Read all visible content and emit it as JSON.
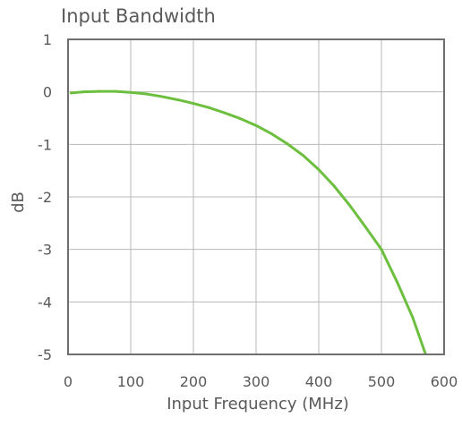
{
  "chart_data": {
    "type": "line",
    "title": "Input Bandwidth",
    "xlabel": "Input Frequency (MHz)",
    "ylabel": "dB",
    "xlim": [
      0,
      600
    ],
    "ylim": [
      -5,
      1
    ],
    "x_ticks": [
      "0",
      "100",
      "200",
      "300",
      "400",
      "500",
      "600"
    ],
    "y_ticks": [
      "1",
      "0",
      "-1",
      "-2",
      "-3",
      "-4",
      "-5"
    ],
    "grid": true,
    "series": [
      {
        "color": "#6dbf3f",
        "x": [
          5,
          25,
          50,
          75,
          100,
          125,
          150,
          175,
          200,
          225,
          250,
          275,
          300,
          325,
          350,
          375,
          400,
          425,
          450,
          475,
          500,
          525,
          550,
          570
        ],
        "y": [
          -0.02,
          0.0,
          0.01,
          0.01,
          -0.01,
          -0.04,
          -0.09,
          -0.15,
          -0.22,
          -0.3,
          -0.4,
          -0.51,
          -0.64,
          -0.8,
          -0.99,
          -1.21,
          -1.48,
          -1.8,
          -2.17,
          -2.58,
          -3.0,
          -3.62,
          -4.3,
          -4.98
        ]
      }
    ]
  }
}
